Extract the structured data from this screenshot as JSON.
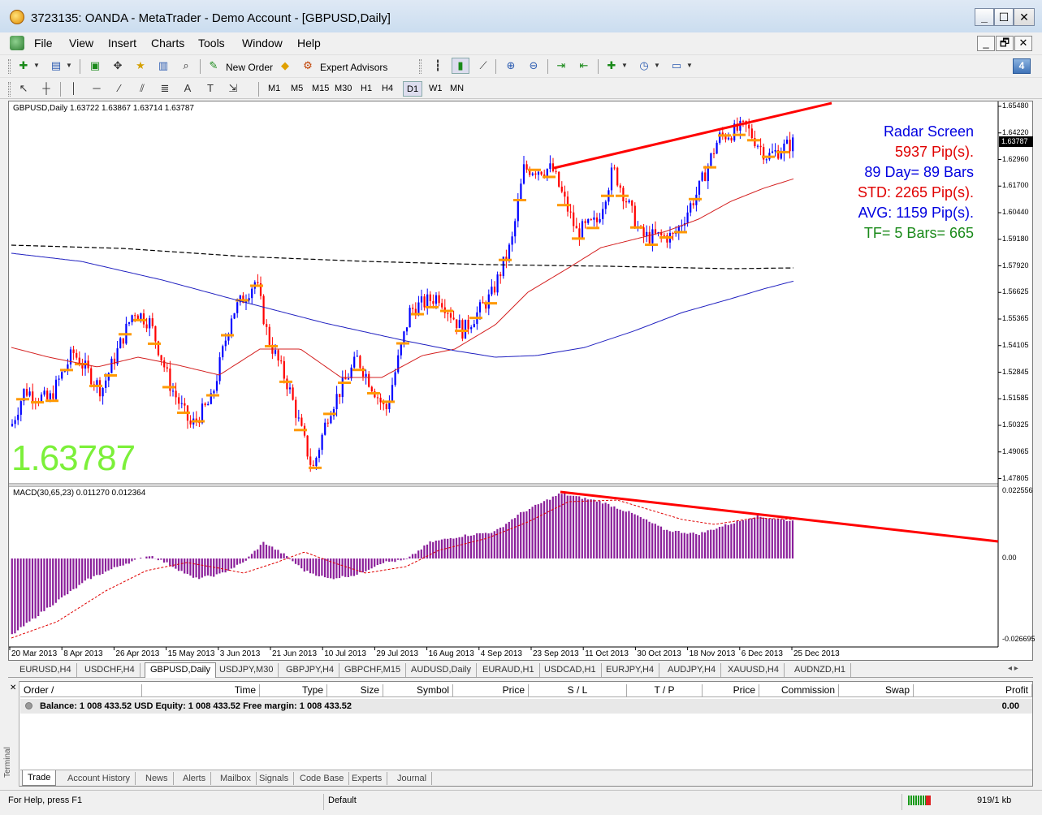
{
  "window": {
    "title": "3723135: OANDA - MetaTrader - Demo Account - [GBPUSD,Daily]",
    "min_label": "_",
    "max_label": "☐",
    "close_label": "✕"
  },
  "menu": {
    "items": [
      "File",
      "View",
      "Insert",
      "Charts",
      "Tools",
      "Window",
      "Help"
    ],
    "mdi": [
      "_",
      "🗗",
      "✕"
    ]
  },
  "toolbar": {
    "new_order": "New Order",
    "expert_advisors": "Expert Advisors",
    "timeframes": [
      "M1",
      "M5",
      "M15",
      "M30",
      "H1",
      "H4",
      "D1",
      "W1",
      "MN"
    ],
    "active_timeframe": "D1",
    "alert_count": "4",
    "draw_text_tool": "A",
    "draw_label_tool": "T"
  },
  "chart": {
    "symbol_info": "GBPUSD,Daily  1.63722 1.63867 1.63714 1.63787",
    "macd_info": "MACD(30,65,23) 0.011270 0.012364",
    "big_price": "1.63787",
    "current_price_tag": "1.63787",
    "price_ticks": [
      "1.65480",
      "1.64220",
      "1.62960",
      "1.61700",
      "1.60440",
      "1.59180",
      "1.57920",
      "1.56625",
      "1.55365",
      "1.54105",
      "1.52845",
      "1.51585",
      "1.50325",
      "1.49065",
      "1.47805"
    ],
    "macd_ticks": [
      "0.022556",
      "0.00",
      "-0.026695"
    ],
    "date_ticks": [
      "20 Mar 2013",
      "8 Apr 2013",
      "26 Apr 2013",
      "15 May 2013",
      "3 Jun 2013",
      "21 Jun 2013",
      "10 Jul 2013",
      "29 Jul 2013",
      "16 Aug 2013",
      "4 Sep 2013",
      "23 Sep 2013",
      "11 Oct 2013",
      "30 Oct 2013",
      "18 Nov 2013",
      "6 Dec 2013",
      "25 Dec 2013"
    ],
    "radar": [
      {
        "text": "Radar Screen",
        "color": "#0000e0"
      },
      {
        "text": "5937 Pip(s).",
        "color": "#e00000"
      },
      {
        "text": "89 Day= 89 Bars",
        "color": "#0000e0"
      },
      {
        "text": "STD: 2265 Pip(s).",
        "color": "#e00000"
      },
      {
        "text": "AVG: 1159 Pip(s).",
        "color": "#0000e0"
      },
      {
        "text": "TF= 5 Bars= 665",
        "color": "#1a8a1a"
      }
    ],
    "colors": {
      "bull": "#0000ff",
      "bear": "#ff0000",
      "level": "#ff9900",
      "ma_fast": "#d42020",
      "ma_slow": "#2020c0",
      "ma_long": "#000000",
      "trend": "#ff0000",
      "macd_hist": "#8a1f9a",
      "macd_signal": "#e00000",
      "big_price": "#7cf03a"
    }
  },
  "symbol_tabs": [
    "EURUSD,H4",
    "USDCHF,H4",
    "GBPUSD,Daily",
    "USDJPY,M30",
    "GBPJPY,H4",
    "GBPCHF,M15",
    "AUDUSD,Daily",
    "EURAUD,H1",
    "USDCAD,H1",
    "EURJPY,H4",
    "AUDJPY,H4",
    "XAUUSD,H4",
    "AUDNZD,H1"
  ],
  "active_symbol_tab": "GBPUSD,Daily",
  "symbol_tab_arrows": "◂ ▸",
  "terminal": {
    "side_label": "Terminal",
    "close_label": "✕",
    "columns": [
      "Order  /",
      "Time",
      "Type",
      "Size",
      "Symbol",
      "Price",
      "S / L",
      "T / P",
      "Price",
      "Commission",
      "Swap",
      "Profit"
    ],
    "balance_text": "Balance: 1 008 433.52 USD  Equity: 1 008 433.52  Free margin: 1 008 433.52",
    "profit_total": "0.00",
    "tabs": [
      "Trade",
      "Account History",
      "News",
      "Alerts",
      "Mailbox",
      "Signals",
      "Code Base",
      "Experts",
      "Journal"
    ],
    "active_tab": "Trade"
  },
  "status": {
    "help": "For Help, press F1",
    "profile": "Default",
    "traffic": "919/1 kb"
  }
}
